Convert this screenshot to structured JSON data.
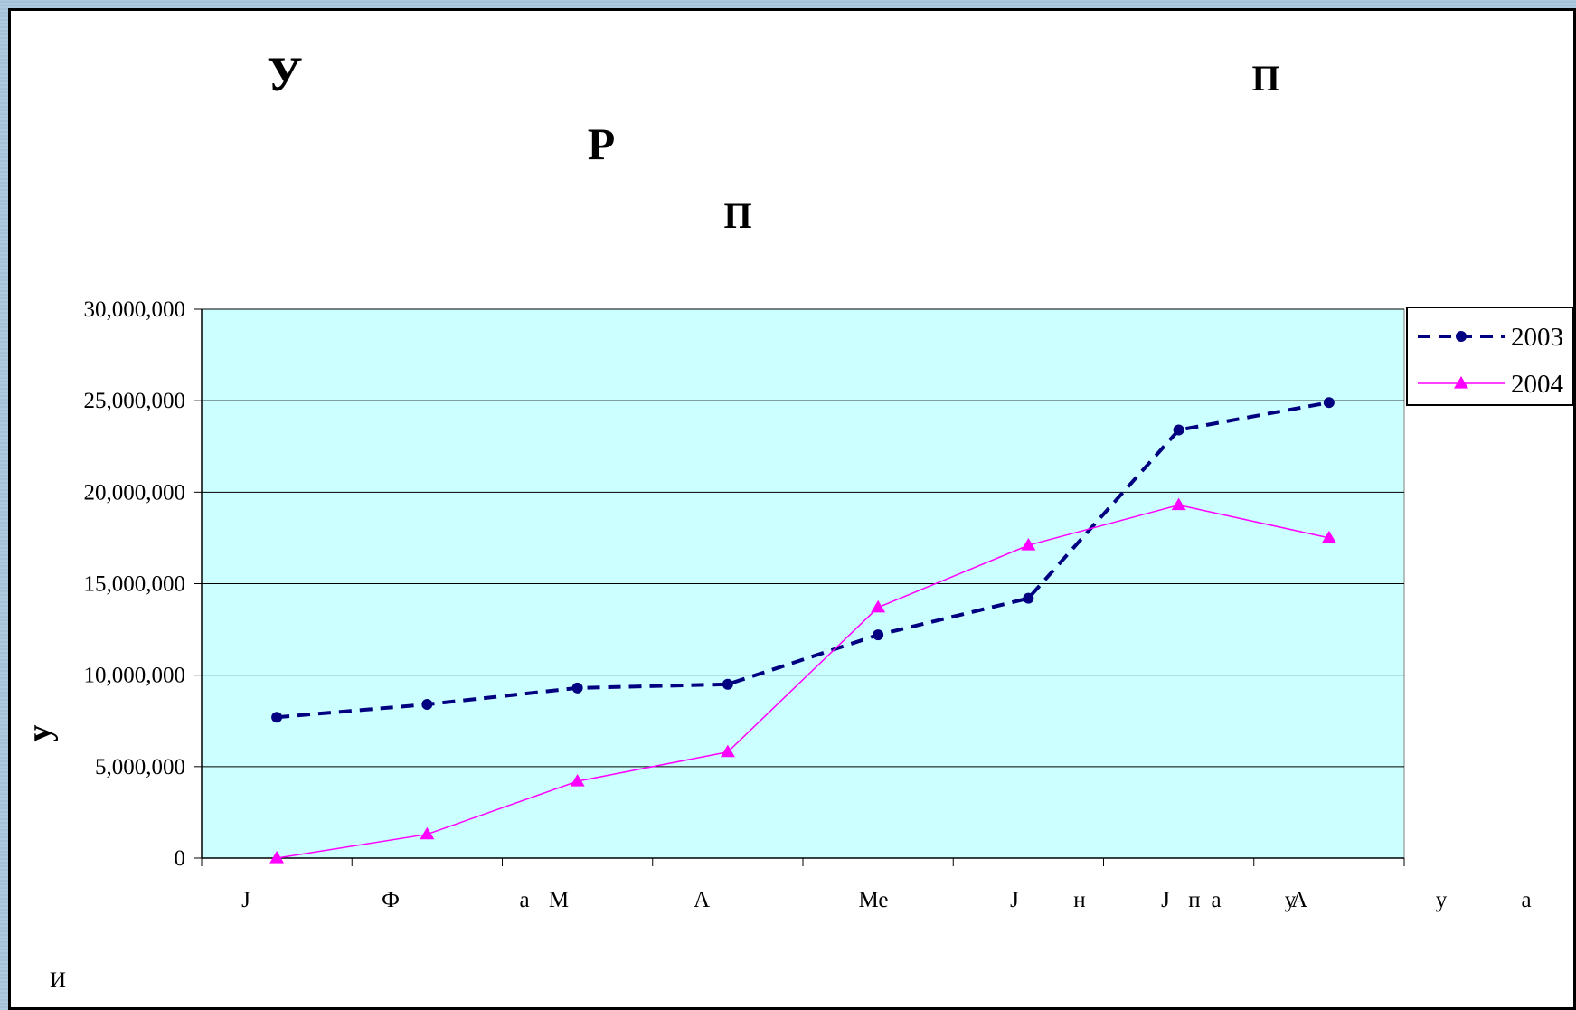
{
  "chart_data": {
    "type": "line",
    "title_fragments": [
      "У",
      "Р",
      "П",
      "П"
    ],
    "ylabel": "у",
    "footnote": "И",
    "ylim": [
      0,
      30000000
    ],
    "y_ticks": [
      0,
      5000000,
      10000000,
      15000000,
      20000000,
      25000000,
      30000000
    ],
    "y_tick_labels": [
      "0",
      "5,000,000",
      "10,000,000",
      "15,000,000",
      "20,000,000",
      "25,000,000",
      "30,000,000"
    ],
    "x_tick_labels": [
      "J",
      "Ф",
      "а",
      "М",
      "А",
      "Ме",
      "J",
      "н",
      "J",
      "п",
      "а",
      "у",
      "А",
      "у",
      "а"
    ],
    "categories": 8,
    "grid": "horizontal",
    "legend": "right-top",
    "plot_background": "#ccffff",
    "series": [
      {
        "name": "2003",
        "color": "#000080",
        "style": "dashed",
        "marker": "circle",
        "values": [
          7700000,
          8400000,
          9300000,
          9500000,
          12200000,
          14200000,
          23400000,
          24900000
        ]
      },
      {
        "name": "2004",
        "color": "#ff00ff",
        "style": "solid",
        "marker": "triangle",
        "values": [
          0,
          1300000,
          4200000,
          5800000,
          13700000,
          17100000,
          19300000,
          17500000
        ]
      }
    ]
  }
}
